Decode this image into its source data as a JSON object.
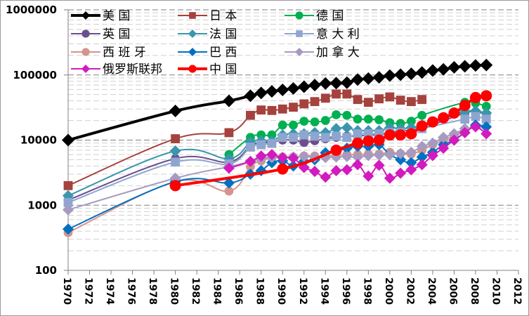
{
  "chart_data": {
    "type": "line",
    "title": "",
    "xlabel": "",
    "ylabel": "",
    "yscale": "log",
    "ylim": [
      100,
      1000000
    ],
    "xlim": [
      1970,
      2012
    ],
    "yticks": [
      "100",
      "1000",
      "10000",
      "100000",
      "1000000"
    ],
    "xticks": [
      "1970",
      "1972",
      "1974",
      "1976",
      "1978",
      "1980",
      "1982",
      "1984",
      "1986",
      "1988",
      "1990",
      "1992",
      "1994",
      "1996",
      "1998",
      "2000",
      "2002",
      "2004",
      "2006",
      "2008",
      "2010",
      "2012"
    ],
    "grid": true,
    "legend_position": "top-left",
    "series": [
      {
        "name": "美国",
        "color": "#000000",
        "marker": "diamond",
        "width": "thick",
        "x": [
          1970,
          1980,
          1985,
          1987,
          1988,
          1989,
          1990,
          1991,
          1992,
          1993,
          1994,
          1995,
          1996,
          1997,
          1998,
          1999,
          2000,
          2001,
          2002,
          2003,
          2004,
          2005,
          2006,
          2007,
          2008,
          2009
        ],
        "values": [
          10000,
          28000,
          40000,
          48000,
          53000,
          56000,
          59000,
          62000,
          66000,
          70000,
          74000,
          75000,
          76000,
          85000,
          88000,
          92000,
          98000,
          101000,
          104000,
          109000,
          117000,
          122000,
          131000,
          136000,
          140000,
          142000
        ]
      },
      {
        "name": "日本",
        "color": "#A5423E",
        "marker": "square",
        "width": "thin",
        "x": [
          1970,
          1980,
          1985,
          1987,
          1988,
          1989,
          1990,
          1991,
          1992,
          1993,
          1994,
          1995,
          1996,
          1997,
          1998,
          1999,
          2000,
          2001,
          2002,
          2003
        ],
        "values": [
          2000,
          10500,
          13000,
          24000,
          29000,
          28500,
          30000,
          32000,
          36000,
          39000,
          44000,
          51000,
          51000,
          42000,
          38000,
          43000,
          46000,
          41000,
          39000,
          42000
        ]
      },
      {
        "name": "德国",
        "color": "#00B050",
        "marker": "circle",
        "width": "thin",
        "x": [
          1985,
          1987,
          1988,
          1989,
          1990,
          1991,
          1992,
          1993,
          1994,
          1995,
          1996,
          1997,
          1998,
          1999,
          2000,
          2001,
          2002,
          2003,
          2007,
          2008,
          2009
        ],
        "values": [
          6000,
          11000,
          12000,
          12000,
          17000,
          17000,
          19500,
          19000,
          20000,
          24500,
          24000,
          21000,
          21000,
          20500,
          18500,
          18000,
          19500,
          24000,
          38000,
          37000,
          33000
        ]
      },
      {
        "name": "英国",
        "color": "#6C4E8E",
        "marker": "circle",
        "width": "thin",
        "x": [
          1970,
          1980,
          1985,
          1987,
          1988,
          1989,
          1990,
          1991,
          1992,
          1993,
          1994,
          1995,
          1996,
          1997,
          1998,
          1999,
          2000,
          2001,
          2002,
          2003,
          2007,
          2008,
          2009
        ],
        "values": [
          1200,
          5200,
          4600,
          8200,
          9000,
          9300,
          10000,
          10000,
          9200,
          9800,
          10500,
          11000,
          11500,
          11500,
          12000,
          12000,
          13000,
          14000,
          14000,
          15000,
          26000,
          27000,
          25000
        ]
      },
      {
        "name": "法国",
        "color": "#3A96AE",
        "marker": "diamond",
        "width": "thin",
        "x": [
          1970,
          1980,
          1985,
          1987,
          1988,
          1989,
          1990,
          1991,
          1992,
          1993,
          1994,
          1995,
          1996,
          1997,
          1998,
          1999,
          2000,
          2001,
          2002,
          2003,
          2007,
          2008,
          2009
        ],
        "values": [
          1400,
          6800,
          5200,
          9300,
          9800,
          9600,
          12000,
          12500,
          12500,
          13000,
          13000,
          15000,
          15500,
          14000,
          14000,
          14000,
          15500,
          15000,
          15500,
          17000,
          27000,
          28000,
          26000
        ]
      },
      {
        "name": "意大利",
        "color": "#8EA6CF",
        "marker": "square",
        "width": "thin",
        "x": [
          1970,
          1980,
          1985,
          1987,
          1988,
          1989,
          1990,
          1991,
          1992,
          1993,
          1994,
          1995,
          1996,
          1997,
          1998,
          1999,
          2000,
          2001,
          2002,
          2003,
          2007,
          2008,
          2009
        ],
        "values": [
          1100,
          4600,
          4300,
          7800,
          8500,
          8900,
          11000,
          11000,
          12000,
          11500,
          11000,
          11500,
          11000,
          12500,
          12500,
          12500,
          13000,
          13000,
          13000,
          15000,
          21000,
          23000,
          21000
        ]
      },
      {
        "name": "西班牙",
        "color": "#D5948F",
        "marker": "circle",
        "width": "thin",
        "x": [
          1970,
          1980,
          1985,
          1987,
          1988,
          1989,
          1990,
          1991,
          1992,
          1993,
          1994,
          1995,
          1996,
          1997,
          1998,
          1999,
          2000,
          2001,
          2002,
          2003,
          2004,
          2005,
          2006,
          2007
        ],
        "values": [
          380,
          2300,
          1650,
          3900,
          4800,
          5400,
          5500,
          5500,
          5700,
          5700,
          5600,
          5900,
          6000,
          6000,
          6100,
          6100,
          6500,
          6200,
          6100,
          7000,
          8500,
          10000,
          11500,
          13500
        ]
      },
      {
        "name": "巴西",
        "color": "#0070C0",
        "marker": "diamond",
        "width": "thin",
        "x": [
          1970,
          1980,
          1985,
          1987,
          1988,
          1989,
          1990,
          1991,
          1992,
          1993,
          1994,
          1995,
          1996,
          1997,
          1998,
          1999,
          2000,
          2001,
          2002,
          2003,
          2004,
          2005,
          2006,
          2007,
          2008,
          2009
        ],
        "values": [
          430,
          2300,
          2200,
          3000,
          3400,
          4500,
          4800,
          4000,
          4700,
          5000,
          6400,
          6800,
          7500,
          8000,
          8000,
          8500,
          6000,
          5000,
          4500,
          5500,
          6500,
          8500,
          10000,
          13000,
          17000,
          16000
        ]
      },
      {
        "name": "加拿大",
        "color": "#A69AC0",
        "marker": "diamond",
        "width": "thin",
        "x": [
          1970,
          1980,
          1985,
          1987,
          1988,
          1989,
          1990,
          1991,
          1992,
          1993,
          1994,
          1995,
          1996,
          1997,
          1998,
          1999,
          2000,
          2001,
          2002,
          2003,
          2004,
          2005,
          2006,
          2007
        ],
        "values": [
          850,
          2600,
          3900,
          4700,
          5200,
          5400,
          5400,
          5500,
          5600,
          5500,
          5400,
          5500,
          5600,
          5500,
          5800,
          5900,
          6000,
          6200,
          6500,
          8000,
          9000,
          11000,
          12500,
          15000
        ]
      },
      {
        "name": "俄罗斯联邦",
        "color": "#D21ABF",
        "marker": "diamond",
        "width": "thin",
        "x": [
          1985,
          1987,
          1988,
          1989,
          1990,
          1991,
          1992,
          1993,
          1994,
          1995,
          1996,
          1997,
          1998,
          1999,
          2000,
          2001,
          2002,
          2003,
          2004,
          2005,
          2006,
          2007,
          2008,
          2009
        ],
        "values": [
          3700,
          4700,
          5700,
          6000,
          5400,
          5300,
          3800,
          3300,
          2700,
          3400,
          3500,
          4200,
          2800,
          4100,
          2600,
          3100,
          3500,
          4200,
          5800,
          7500,
          10000,
          13000,
          16000,
          12500
        ]
      },
      {
        "name": "中国",
        "color": "#FF0000",
        "marker": "circle",
        "width": "thick",
        "x": [
          1980,
          1990,
          1995,
          1997,
          1998,
          1999,
          2000,
          2001,
          2002,
          2003,
          2004,
          2005,
          2006,
          2007,
          2008,
          2009
        ],
        "values": [
          2000,
          3600,
          7000,
          9000,
          9700,
          10000,
          12000,
          12000,
          12500,
          16500,
          19000,
          22000,
          26000,
          34000,
          45000,
          48000
        ]
      }
    ]
  }
}
